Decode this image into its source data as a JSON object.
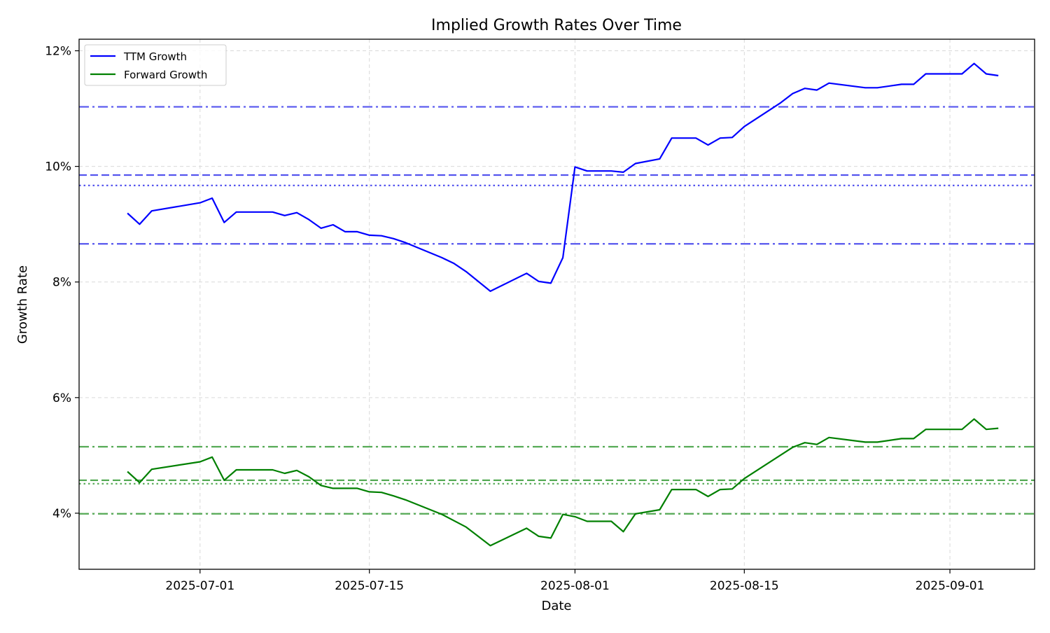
{
  "chart_data": {
    "type": "line",
    "title": "Implied Growth Rates Over Time",
    "xlabel": "Date",
    "ylabel": "Growth Rate",
    "x_ticks": [
      "2025-07-01",
      "2025-07-15",
      "2025-08-01",
      "2025-08-15",
      "2025-09-01"
    ],
    "y_ticks": [
      "4%",
      "6%",
      "8%",
      "10%",
      "12%"
    ],
    "y_tick_values": [
      4,
      6,
      8,
      10,
      12
    ],
    "xlim": [
      "2025-06-21",
      "2025-09-08"
    ],
    "ylim": [
      3.03,
      12.2
    ],
    "grid": true,
    "legend_position": "top-left",
    "series": [
      {
        "name": "TTM Growth",
        "color": "#0000ff",
        "points": [
          [
            "2025-06-25",
            9.19
          ],
          [
            "2025-06-26",
            9.0
          ],
          [
            "2025-06-27",
            9.23
          ],
          [
            "2025-07-01",
            9.37
          ],
          [
            "2025-07-02",
            9.45
          ],
          [
            "2025-07-03",
            9.03
          ],
          [
            "2025-07-04",
            9.21
          ],
          [
            "2025-07-07",
            9.21
          ],
          [
            "2025-07-08",
            9.15
          ],
          [
            "2025-07-09",
            9.2
          ],
          [
            "2025-07-10",
            9.08
          ],
          [
            "2025-07-11",
            8.93
          ],
          [
            "2025-07-12",
            8.99
          ],
          [
            "2025-07-13",
            8.87
          ],
          [
            "2025-07-14",
            8.87
          ],
          [
            "2025-07-15",
            8.81
          ],
          [
            "2025-07-16",
            8.8
          ],
          [
            "2025-07-17",
            8.75
          ],
          [
            "2025-07-18",
            8.68
          ],
          [
            "2025-07-21",
            8.42
          ],
          [
            "2025-07-22",
            8.32
          ],
          [
            "2025-07-23",
            8.18
          ],
          [
            "2025-07-25",
            7.84
          ],
          [
            "2025-07-28",
            8.15
          ],
          [
            "2025-07-29",
            8.01
          ],
          [
            "2025-07-30",
            7.98
          ],
          [
            "2025-07-31",
            8.42
          ],
          [
            "2025-08-01",
            9.99
          ],
          [
            "2025-08-02",
            9.92
          ],
          [
            "2025-08-04",
            9.92
          ],
          [
            "2025-08-05",
            9.9
          ],
          [
            "2025-08-06",
            10.05
          ],
          [
            "2025-08-08",
            10.13
          ],
          [
            "2025-08-09",
            10.49
          ],
          [
            "2025-08-11",
            10.49
          ],
          [
            "2025-08-12",
            10.37
          ],
          [
            "2025-08-13",
            10.49
          ],
          [
            "2025-08-14",
            10.5
          ],
          [
            "2025-08-15",
            10.69
          ],
          [
            "2025-08-18",
            11.1
          ],
          [
            "2025-08-19",
            11.26
          ],
          [
            "2025-08-20",
            11.35
          ],
          [
            "2025-08-21",
            11.32
          ],
          [
            "2025-08-22",
            11.44
          ],
          [
            "2025-08-25",
            11.36
          ],
          [
            "2025-08-26",
            11.36
          ],
          [
            "2025-08-28",
            11.42
          ],
          [
            "2025-08-29",
            11.42
          ],
          [
            "2025-08-30",
            11.6
          ],
          [
            "2025-09-02",
            11.6
          ],
          [
            "2025-09-03",
            11.78
          ],
          [
            "2025-09-04",
            11.6
          ],
          [
            "2025-09-05",
            11.57
          ]
        ]
      },
      {
        "name": "Forward Growth",
        "color": "#008000",
        "points": [
          [
            "2025-06-25",
            4.72
          ],
          [
            "2025-06-26",
            4.53
          ],
          [
            "2025-06-27",
            4.76
          ],
          [
            "2025-07-01",
            4.89
          ],
          [
            "2025-07-02",
            4.97
          ],
          [
            "2025-07-03",
            4.57
          ],
          [
            "2025-07-04",
            4.75
          ],
          [
            "2025-07-07",
            4.75
          ],
          [
            "2025-07-08",
            4.69
          ],
          [
            "2025-07-09",
            4.74
          ],
          [
            "2025-07-10",
            4.63
          ],
          [
            "2025-07-11",
            4.48
          ],
          [
            "2025-07-12",
            4.43
          ],
          [
            "2025-07-14",
            4.43
          ],
          [
            "2025-07-15",
            4.37
          ],
          [
            "2025-07-16",
            4.36
          ],
          [
            "2025-07-17",
            4.3
          ],
          [
            "2025-07-18",
            4.23
          ],
          [
            "2025-07-21",
            3.98
          ],
          [
            "2025-07-23",
            3.76
          ],
          [
            "2025-07-25",
            3.44
          ],
          [
            "2025-07-28",
            3.74
          ],
          [
            "2025-07-29",
            3.6
          ],
          [
            "2025-07-30",
            3.57
          ],
          [
            "2025-07-31",
            3.98
          ],
          [
            "2025-08-01",
            3.94
          ],
          [
            "2025-08-02",
            3.86
          ],
          [
            "2025-08-04",
            3.86
          ],
          [
            "2025-08-05",
            3.68
          ],
          [
            "2025-08-06",
            3.99
          ],
          [
            "2025-08-08",
            4.06
          ],
          [
            "2025-08-09",
            4.41
          ],
          [
            "2025-08-11",
            4.41
          ],
          [
            "2025-08-12",
            4.29
          ],
          [
            "2025-08-13",
            4.41
          ],
          [
            "2025-08-14",
            4.42
          ],
          [
            "2025-08-15",
            4.6
          ],
          [
            "2025-08-19",
            5.14
          ],
          [
            "2025-08-20",
            5.22
          ],
          [
            "2025-08-21",
            5.19
          ],
          [
            "2025-08-22",
            5.31
          ],
          [
            "2025-08-25",
            5.23
          ],
          [
            "2025-08-26",
            5.23
          ],
          [
            "2025-08-28",
            5.29
          ],
          [
            "2025-08-29",
            5.29
          ],
          [
            "2025-08-30",
            5.45
          ],
          [
            "2025-09-02",
            5.45
          ],
          [
            "2025-09-03",
            5.63
          ],
          [
            "2025-09-04",
            5.45
          ],
          [
            "2025-09-05",
            5.47
          ]
        ]
      }
    ],
    "reference_lines": [
      {
        "series": "TTM Growth",
        "value": 11.03,
        "style": "dashdot",
        "color": "#5555ee"
      },
      {
        "series": "TTM Growth",
        "value": 9.85,
        "style": "dashed",
        "color": "#5555ee"
      },
      {
        "series": "TTM Growth",
        "value": 9.67,
        "style": "dotted",
        "color": "#5555ee"
      },
      {
        "series": "TTM Growth",
        "value": 8.66,
        "style": "dashdot",
        "color": "#5555ee"
      },
      {
        "series": "Forward Growth",
        "value": 5.15,
        "style": "dashdot",
        "color": "#55aa55"
      },
      {
        "series": "Forward Growth",
        "value": 4.57,
        "style": "dashed",
        "color": "#55aa55"
      },
      {
        "series": "Forward Growth",
        "value": 4.51,
        "style": "dotted",
        "color": "#55aa55"
      },
      {
        "series": "Forward Growth",
        "value": 3.99,
        "style": "dashdot",
        "color": "#55aa55"
      }
    ]
  }
}
